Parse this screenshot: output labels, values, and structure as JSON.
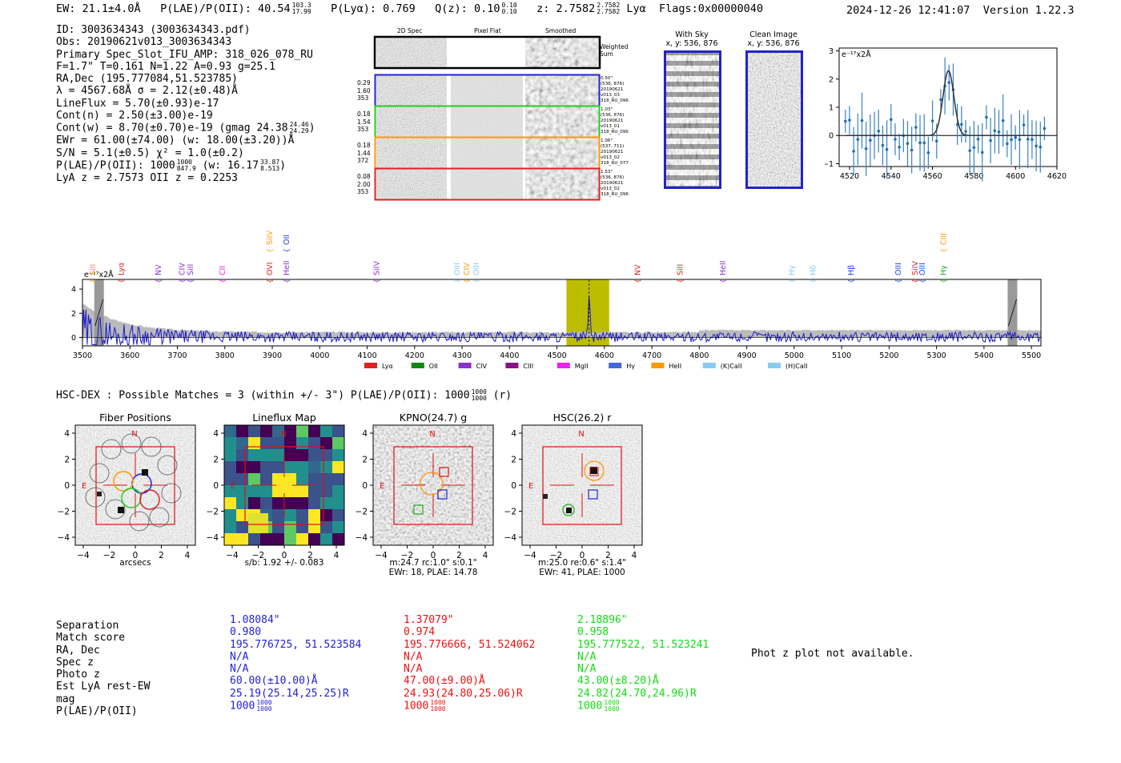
{
  "header": {
    "ew": "EW: 21.1±4.0Å",
    "plae_label": "P(LAE)/P(OII): 40.54",
    "plae_hi": "103.3",
    "plae_lo": "17.99",
    "plya": "P(Lyα): 0.769",
    "qz_label": "Q(z): 0.10",
    "qz_hi": "0.10",
    "qz_lo": "0.10",
    "z_label": "z: 2.7582",
    "z_hi": "2.7582",
    "z_lo": "2.7582",
    "z_line": "Lyα",
    "flags": "Flags:0x00000040",
    "datetime": "2024-12-26 12:41:07",
    "version": "Version 1.22.3"
  },
  "info": {
    "id": "ID: 3003634343 (3003634343.pdf)",
    "obs": "Obs: 20190621v013_3003634343",
    "primary": "Primary Spec_Slot_IFU_AMP: 318_026_078_RU",
    "fiber": "F=1.7\"  T=0.161  N=1.22  A=0.93  g=25.1",
    "radec": "RA,Dec (195.777084,51.523785)",
    "lambda": "λ = 4567.68Å  σ = 2.12(±0.48)Å",
    "lineflux": "LineFlux = 5.70(±0.93)e-17",
    "contn": "Cont(n) = 2.50(±3.00)e-19",
    "contw": "Cont(w) = 8.70(±0.70)e-19 (gmag 24.38",
    "contw_hi": "24.46",
    "contw_lo": "24.29",
    "ewr": "EWr = 61.00(±74.00) (w: 18.00(±3.20))Å",
    "sn": "S/N = 5.1(±0.5)  χ² = 1.0(±0.2)",
    "plae": "P(LAE)/P(OII): 1000",
    "plae_hi": "1000",
    "plae_lo": "847.9",
    "plae_w": "(w: 16.17",
    "plae_w_hi": "33.87",
    "plae_w_lo": "8.513",
    "zlines": "LyA z = 2.7573  OII z = 0.2253"
  },
  "cutouts": {
    "col1": "2D Spec",
    "col2": "Pixel Flat",
    "col3": "Smoothed",
    "weighted": "Weighted",
    "sum": "Sum",
    "rows": [
      {
        "l1": "0.29",
        "l2": "1.60",
        "l3": "353",
        "r1": "0.50\"",
        "r2": "(536, 876)",
        "r3": "20190621",
        "r4": "v013_03",
        "r5": "318_RU_096",
        "color": "#2222cc"
      },
      {
        "l1": "0.18",
        "l2": "1.54",
        "l3": "353",
        "r1": "1.03\"",
        "r2": "(536, 876)",
        "r3": "20190621",
        "r4": "v013_01",
        "r5": "318_RU_096",
        "color": "#22cc22"
      },
      {
        "l1": "0.18",
        "l2": "1.44",
        "l3": "372",
        "r1": "1.06\"",
        "r2": "(537, 711)",
        "r3": "20190621",
        "r4": "v013_02",
        "r5": "318_RU_077",
        "color": "#ff9900"
      },
      {
        "l1": "0.08",
        "l2": "2.00",
        "l3": "353",
        "r1": "1.53\"",
        "r2": "(536, 876)",
        "r3": "20190621",
        "r4": "v013_02",
        "r5": "318_RU_096",
        "color": "#dd2222"
      }
    ],
    "with_sky": "With Sky",
    "with_sky_xy": "x, y: 536, 876",
    "clean": "Clean Image",
    "clean_xy": "x, y: 536, 876"
  },
  "zoom_chart": {
    "unit": "e⁻¹⁷x2Å",
    "xlim": [
      4515,
      4620
    ],
    "ylim": [
      -1.1,
      3.1
    ],
    "xticks": [
      "4520",
      "4540",
      "4560",
      "4580",
      "4600",
      "4620"
    ],
    "yticks": [
      "3",
      "2",
      "1",
      "0",
      "−1"
    ]
  },
  "chart_data": {
    "type": "line",
    "unit": "e⁻¹⁷x2Å",
    "xlim": [
      3500,
      5520
    ],
    "ylim": [
      -0.7,
      4.8
    ],
    "xticks": [
      "3500",
      "3600",
      "3700",
      "3800",
      "3900",
      "4000",
      "4100",
      "4200",
      "4300",
      "4400",
      "4500",
      "4600",
      "4700",
      "4800",
      "4900",
      "5000",
      "5100",
      "5200",
      "5300",
      "5400",
      "5500"
    ],
    "yticks": [
      "4",
      "2",
      "0"
    ],
    "highlight": [
      4520,
      4610
    ],
    "line_marker": 4567.7,
    "masks": [
      3535,
      5460
    ],
    "lines": [
      {
        "name": "SiII",
        "x": 3522,
        "color": "#ff9900",
        "row": 0
      },
      {
        "name": "Lyα",
        "x": 3582,
        "color": "#dd2222",
        "row": 0
      },
      {
        "name": "NV",
        "x": 3660,
        "color": "#8833cc",
        "row": 0
      },
      {
        "name": "CIV",
        "x": 3710,
        "color": "#8833cc",
        "row": 0
      },
      {
        "name": "SiII",
        "x": 3728,
        "color": "#8833cc",
        "row": 0
      },
      {
        "name": "CII",
        "x": 3795,
        "color": "#ee22ee",
        "row": 0
      },
      {
        "name": "SiIV",
        "x": 3895,
        "color": "#ff9900",
        "row": 1
      },
      {
        "name": "OVI",
        "x": 3895,
        "color": "#dd2222",
        "row": 0
      },
      {
        "name": "OII",
        "x": 3930,
        "color": "#2244dd",
        "row": 1
      },
      {
        "name": "HeII",
        "x": 3930,
        "color": "#8833cc",
        "row": 0
      },
      {
        "name": "SiIV",
        "x": 4120,
        "color": "#8833cc",
        "row": 0
      },
      {
        "name": "OIII",
        "x": 4290,
        "color": "#88ccee",
        "row": 0
      },
      {
        "name": "CIV",
        "x": 4310,
        "color": "#ff9900",
        "row": 0
      },
      {
        "name": "OIII",
        "x": 4330,
        "color": "#88ccee",
        "row": 0
      },
      {
        "name": "NV",
        "x": 4670,
        "color": "#dd2222",
        "row": 0
      },
      {
        "name": "SiII",
        "x": 4760,
        "color": "#dd2222",
        "row": 0
      },
      {
        "name": "HeII",
        "x": 4850,
        "color": "#8833cc",
        "row": 0
      },
      {
        "name": "Hγ",
        "x": 4995,
        "color": "#88ccee",
        "row": 0
      },
      {
        "name": "Hδ",
        "x": 5040,
        "color": "#88ccee",
        "row": 0
      },
      {
        "name": "Hβ",
        "x": 5120,
        "color": "#2244dd",
        "row": 0
      },
      {
        "name": "OIII",
        "x": 5220,
        "color": "#2244dd",
        "row": 0
      },
      {
        "name": "SiIV",
        "x": 5255,
        "color": "#dd2222",
        "row": 0
      },
      {
        "name": "OIII",
        "x": 5270,
        "color": "#2244dd",
        "row": 0
      },
      {
        "name": "CIII",
        "x": 5315,
        "color": "#ff9900",
        "row": 1
      },
      {
        "name": "Hγ",
        "x": 5315,
        "color": "#22aa22",
        "row": 0
      }
    ],
    "legend": [
      {
        "name": "Lyα",
        "color": "#dd2222"
      },
      {
        "name": "OII",
        "color": "#118811"
      },
      {
        "name": "CIV",
        "color": "#8833cc"
      },
      {
        "name": "CIII",
        "color": "#881188"
      },
      {
        "name": "MgII",
        "color": "#ee22ee"
      },
      {
        "name": "Hγ",
        "color": "#4466dd"
      },
      {
        "name": "HeII",
        "color": "#ff9900"
      },
      {
        "name": "(K)CaII",
        "color": "#88ccee"
      },
      {
        "name": "(H)CaII",
        "color": "#88ccee"
      }
    ]
  },
  "hsc": {
    "title": "HSC-DEX : Possible Matches = 3 (within +/- 3\")  P(LAE)/P(OII): 1000",
    "hi": "1000",
    "lo": "1000",
    "band": "(r)",
    "axis_ticks": [
      "4",
      "2",
      "0",
      "−2",
      "−4"
    ],
    "xaxis_ticks": [
      "−4",
      "−2",
      "0",
      "2",
      "4"
    ],
    "panels": [
      {
        "title": "Fiber Positions",
        "cap1": "arcsecs",
        "cap2": "",
        "cap3": ""
      },
      {
        "title": "Lineflux Map",
        "cap1": "s/b: 1.92 +/- 0.083",
        "cap2": "",
        "cap3": ""
      },
      {
        "title": "KPNO(24.7) g",
        "cap1": "m:24.7 rc:1.0\"  s:0.1\"",
        "cap2": "EWr: 18, PLAE: 14.78",
        "cap3": ""
      },
      {
        "title": "HSC(26.2) r",
        "cap1": "m:25.0  re:0.6\"  s:1.4\"",
        "cap2": "EWr: 41, PLAE: 1000",
        "cap3": ""
      }
    ],
    "north": "N",
    "east": "E"
  },
  "table": {
    "labels": [
      "Separation",
      "Match score",
      "RA, Dec",
      "Spec z",
      "Photo z",
      "Est LyA rest-EW",
      "mag",
      "P(LAE)/P(OII)"
    ],
    "cols": [
      {
        "color": "#2222dd",
        "vals": [
          "1.08084\"",
          "0.980",
          "195.776725, 51.523584",
          "N/A",
          "N/A",
          "60.00(±10.00)Å",
          "25.19(25.14,25.25)R",
          "1000"
        ],
        "hi": "1000",
        "lo": "1000"
      },
      {
        "color": "#ee1111",
        "vals": [
          "1.37079\"",
          "0.974",
          "195.776666, 51.524062",
          "N/A",
          "N/A",
          "47.00(±9.00)Å",
          "24.93(24.80,25.06)R",
          "1000"
        ],
        "hi": "1000",
        "lo": "1000"
      },
      {
        "color": "#11dd11",
        "vals": [
          "2.18896\"",
          "0.958",
          "195.777522, 51.523241",
          "N/A",
          "N/A",
          "43.00(±8.20)Å",
          "24.82(24.70,24.96)R",
          "1000"
        ],
        "hi": "1000",
        "lo": "1000"
      }
    ],
    "photz": "Phot z plot not available."
  }
}
